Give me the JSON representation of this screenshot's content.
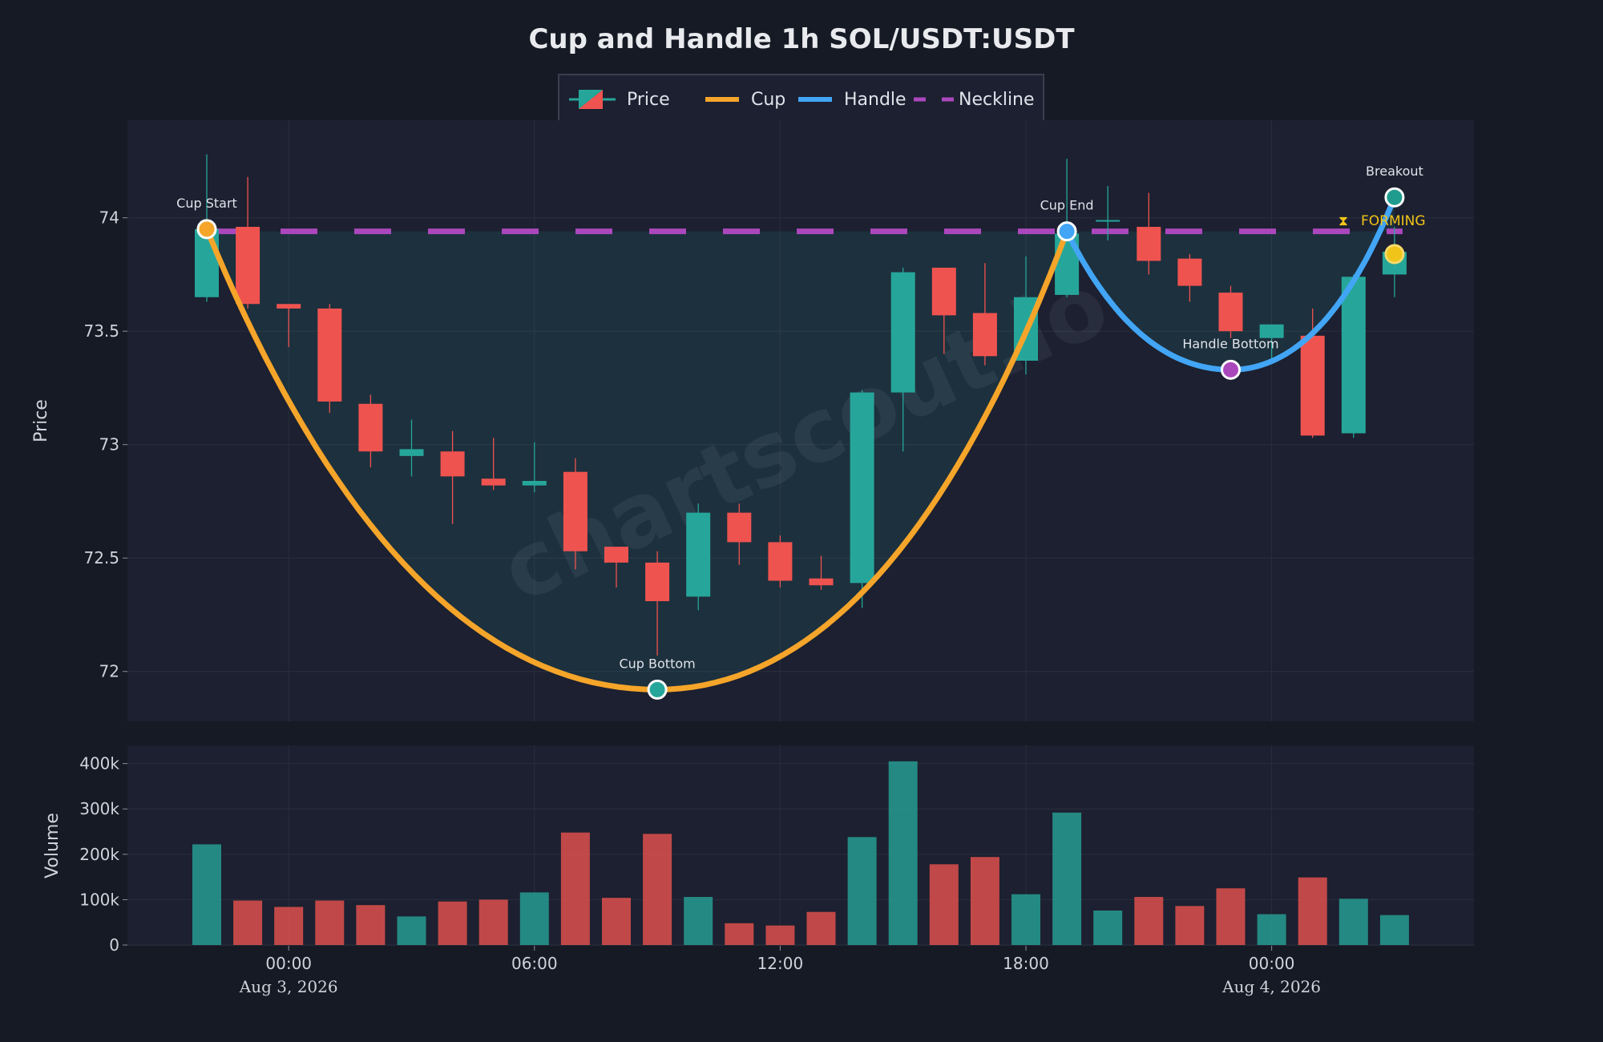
{
  "title": "Cup and Handle 1h SOL/USDT:USDT",
  "watermark": "chartscout.io",
  "legend": {
    "price": "Price",
    "cup": "Cup",
    "handle": "Handle",
    "neckline": "Neckline"
  },
  "colors": {
    "up": "#26a69a",
    "down": "#ef5350",
    "cup": "#f5a52a",
    "handle": "#42a5f5",
    "neckline": "#ab47bc",
    "forming": "#f0c419"
  },
  "status": "FORMING",
  "chart_data": {
    "type": "candlestick",
    "interval": "1h",
    "symbol": "SOL/USDT:USDT",
    "ylabel": "Price",
    "volume_label": "Volume",
    "ylim": [
      71.78,
      74.43
    ],
    "yticks": [
      72,
      72.5,
      73,
      73.5,
      74
    ],
    "volume_ylim": [
      0,
      410000
    ],
    "volume_ticks": [
      {
        "v": 0,
        "label": "0"
      },
      {
        "v": 100000,
        "label": "100k"
      },
      {
        "v": 200000,
        "label": "200k"
      },
      {
        "v": 300000,
        "label": "300k"
      },
      {
        "v": 400000,
        "label": "400k"
      }
    ],
    "xticks": [
      {
        "t": "2026-08-03 00:00",
        "time": "00:00",
        "date": "Aug 3, 2026"
      },
      {
        "t": "2026-08-03 06:00",
        "time": "06:00",
        "date": ""
      },
      {
        "t": "2026-08-03 12:00",
        "time": "12:00",
        "date": ""
      },
      {
        "t": "2026-08-03 18:00",
        "time": "18:00",
        "date": ""
      },
      {
        "t": "2026-08-04 00:00",
        "time": "00:00",
        "date": "Aug 4, 2026"
      }
    ],
    "candles": [
      {
        "t": "2026-08-02 22:00",
        "o": 73.65,
        "h": 74.28,
        "l": 73.63,
        "c": 73.95,
        "v": 222000
      },
      {
        "t": "2026-08-02 23:00",
        "o": 73.96,
        "h": 74.18,
        "l": 73.6,
        "c": 73.62,
        "v": 98000
      },
      {
        "t": "2026-08-03 00:00",
        "o": 73.62,
        "h": 73.62,
        "l": 73.43,
        "c": 73.6,
        "v": 84000
      },
      {
        "t": "2026-08-03 01:00",
        "o": 73.6,
        "h": 73.62,
        "l": 73.14,
        "c": 73.19,
        "v": 98000
      },
      {
        "t": "2026-08-03 02:00",
        "o": 73.18,
        "h": 73.22,
        "l": 72.9,
        "c": 72.97,
        "v": 88000
      },
      {
        "t": "2026-08-03 03:00",
        "o": 72.95,
        "h": 73.11,
        "l": 72.86,
        "c": 72.98,
        "v": 63000
      },
      {
        "t": "2026-08-03 04:00",
        "o": 72.97,
        "h": 73.06,
        "l": 72.65,
        "c": 72.86,
        "v": 96000
      },
      {
        "t": "2026-08-03 05:00",
        "o": 72.85,
        "h": 73.03,
        "l": 72.8,
        "c": 72.82,
        "v": 100000
      },
      {
        "t": "2026-08-03 06:00",
        "o": 72.82,
        "h": 73.01,
        "l": 72.79,
        "c": 72.84,
        "v": 116000
      },
      {
        "t": "2026-08-03 07:00",
        "o": 72.88,
        "h": 72.94,
        "l": 72.45,
        "c": 72.53,
        "v": 248000
      },
      {
        "t": "2026-08-03 08:00",
        "o": 72.55,
        "h": 72.55,
        "l": 72.37,
        "c": 72.48,
        "v": 104000
      },
      {
        "t": "2026-08-03 09:00",
        "o": 72.48,
        "h": 72.53,
        "l": 72.07,
        "c": 72.31,
        "v": 245000
      },
      {
        "t": "2026-08-03 10:00",
        "o": 72.33,
        "h": 72.74,
        "l": 72.27,
        "c": 72.7,
        "v": 106000
      },
      {
        "t": "2026-08-03 11:00",
        "o": 72.7,
        "h": 72.74,
        "l": 72.47,
        "c": 72.57,
        "v": 48000
      },
      {
        "t": "2026-08-03 12:00",
        "o": 72.57,
        "h": 72.6,
        "l": 72.37,
        "c": 72.4,
        "v": 43000
      },
      {
        "t": "2026-08-03 13:00",
        "o": 72.41,
        "h": 72.51,
        "l": 72.36,
        "c": 72.38,
        "v": 73000
      },
      {
        "t": "2026-08-03 14:00",
        "o": 72.39,
        "h": 73.24,
        "l": 72.28,
        "c": 73.23,
        "v": 238000
      },
      {
        "t": "2026-08-03 15:00",
        "o": 73.23,
        "h": 73.78,
        "l": 72.97,
        "c": 73.76,
        "v": 405000
      },
      {
        "t": "2026-08-03 16:00",
        "o": 73.78,
        "h": 73.78,
        "l": 73.4,
        "c": 73.57,
        "v": 178000
      },
      {
        "t": "2026-08-03 17:00",
        "o": 73.58,
        "h": 73.8,
        "l": 73.35,
        "c": 73.39,
        "v": 194000
      },
      {
        "t": "2026-08-03 18:00",
        "o": 73.37,
        "h": 73.83,
        "l": 73.31,
        "c": 73.65,
        "v": 112000
      },
      {
        "t": "2026-08-03 19:00",
        "o": 73.66,
        "h": 74.26,
        "l": 73.65,
        "c": 73.93,
        "v": 292000
      },
      {
        "t": "2026-08-03 20:00",
        "o": 73.99,
        "h": 74.14,
        "l": 73.9,
        "c": 73.99,
        "v": 76000
      },
      {
        "t": "2026-08-03 21:00",
        "o": 73.96,
        "h": 74.11,
        "l": 73.75,
        "c": 73.81,
        "v": 106000
      },
      {
        "t": "2026-08-03 22:00",
        "o": 73.82,
        "h": 73.84,
        "l": 73.63,
        "c": 73.7,
        "v": 86000
      },
      {
        "t": "2026-08-03 23:00",
        "o": 73.67,
        "h": 73.7,
        "l": 73.47,
        "c": 73.5,
        "v": 125000
      },
      {
        "t": "2026-08-04 00:00",
        "o": 73.47,
        "h": 73.53,
        "l": 73.36,
        "c": 73.53,
        "v": 68000
      },
      {
        "t": "2026-08-04 01:00",
        "o": 73.48,
        "h": 73.6,
        "l": 73.03,
        "c": 73.04,
        "v": 149000
      },
      {
        "t": "2026-08-04 02:00",
        "o": 73.05,
        "h": 73.75,
        "l": 73.03,
        "c": 73.74,
        "v": 102000
      },
      {
        "t": "2026-08-04 03:00",
        "o": 73.75,
        "h": 73.96,
        "l": 73.65,
        "c": 73.85,
        "v": 66000
      }
    ],
    "neckline": {
      "value": 73.94,
      "from": 0,
      "to": 29
    },
    "cup": {
      "start": {
        "i": 0,
        "y": 73.95
      },
      "bottom": {
        "i": 11,
        "y": 71.92
      },
      "end": {
        "i": 21,
        "y": 73.94
      }
    },
    "handle": {
      "start": {
        "i": 21,
        "y": 73.94
      },
      "bottom": {
        "i": 25,
        "y": 73.33
      },
      "end": {
        "i": 29,
        "y": 74.09
      }
    },
    "markers": [
      {
        "label": "Cup Start",
        "i": 0,
        "y": 73.95,
        "fill": "#f5a52a"
      },
      {
        "label": "Cup Bottom",
        "i": 11,
        "y": 71.92,
        "fill": "#26a69a"
      },
      {
        "label": "Cup End",
        "i": 21,
        "y": 73.94,
        "fill": "#42a5f5"
      },
      {
        "label": "Handle Bottom",
        "i": 25,
        "y": 73.33,
        "fill": "#ab47bc"
      },
      {
        "label": "Breakout",
        "i": 29,
        "y": 74.09,
        "fill": "#1f9c8e"
      }
    ],
    "current_price": {
      "i": 29,
      "y": 73.84
    }
  }
}
